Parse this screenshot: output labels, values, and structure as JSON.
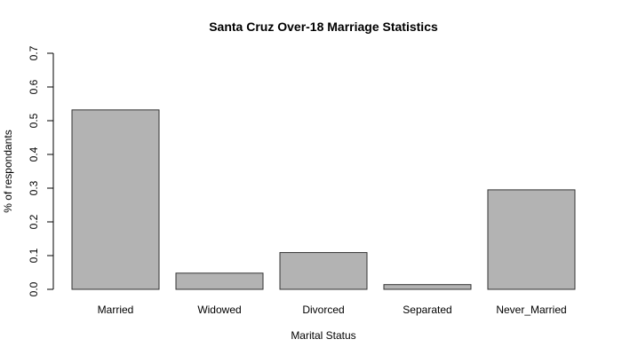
{
  "chart_data": {
    "type": "bar",
    "title": "Santa Cruz Over-18 Marriage Statistics",
    "xlabel": "Marital Status",
    "ylabel": "% of respondants",
    "categories": [
      "Married",
      "Widowed",
      "Divorced",
      "Separated",
      "Never_Married"
    ],
    "values": [
      0.532,
      0.048,
      0.109,
      0.014,
      0.295
    ],
    "ylim": [
      0,
      0.7
    ],
    "yticks": [
      "0.0",
      "0.1",
      "0.2",
      "0.3",
      "0.4",
      "0.5",
      "0.6",
      "0.7"
    ],
    "grid": false,
    "legend": "none",
    "bar_color": "#b3b3b3",
    "bar_border_color": "#333333"
  }
}
